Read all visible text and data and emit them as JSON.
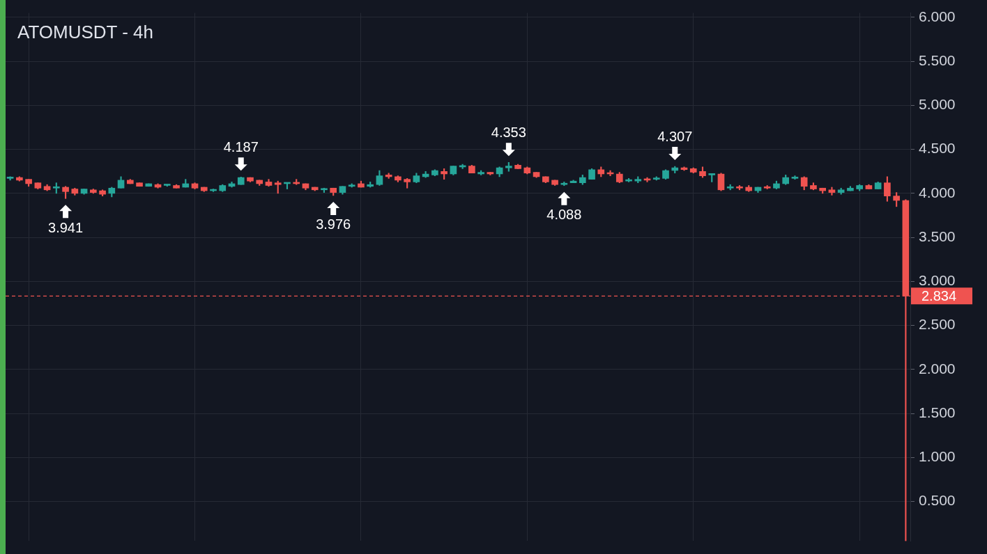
{
  "chart_data": {
    "type": "candlestick",
    "title": "ATOMUSDT - 4h",
    "categories": [
      null,
      null,
      null,
      null,
      null,
      null,
      null,
      null,
      null,
      null,
      null,
      null,
      null,
      null,
      null,
      null,
      null,
      null,
      null,
      null,
      null,
      null,
      null,
      null,
      null,
      null,
      null,
      null,
      null,
      null,
      null,
      null,
      null,
      null,
      null,
      null,
      null,
      null,
      null,
      null,
      null,
      null,
      null,
      null,
      null,
      null,
      null,
      null,
      null,
      null,
      null,
      null,
      null,
      null,
      null,
      null,
      null,
      null,
      null,
      null,
      null,
      null,
      null,
      null,
      null,
      null,
      null,
      null,
      null,
      null,
      null,
      null,
      null,
      null,
      null,
      null,
      null,
      null,
      null,
      null,
      null,
      null,
      null,
      null,
      null,
      null,
      null,
      null,
      null,
      null,
      null,
      null,
      null,
      null,
      null,
      null,
      null,
      null
    ],
    "ohlc": [
      [
        4.17,
        4.19,
        4.15,
        4.18
      ],
      [
        4.18,
        4.19,
        4.14,
        4.15
      ],
      [
        4.16,
        4.16,
        4.08,
        4.11
      ],
      [
        4.12,
        4.12,
        4.05,
        4.06
      ],
      [
        4.08,
        4.1,
        4.03,
        4.04
      ],
      [
        4.06,
        4.12,
        4.0,
        4.07
      ],
      [
        4.07,
        4.08,
        3.941,
        4.02
      ],
      [
        4.05,
        4.06,
        3.98,
        4.0
      ],
      [
        4.0,
        4.05,
        3.99,
        4.05
      ],
      [
        4.04,
        4.05,
        4.0,
        4.01
      ],
      [
        4.03,
        4.04,
        3.97,
        3.99
      ],
      [
        4.0,
        4.07,
        3.96,
        4.06
      ],
      [
        4.06,
        4.19,
        4.06,
        4.15
      ],
      [
        4.15,
        4.16,
        4.11,
        4.11
      ],
      [
        4.12,
        4.12,
        4.08,
        4.08
      ],
      [
        4.08,
        4.11,
        4.08,
        4.11
      ],
      [
        4.1,
        4.11,
        4.06,
        4.07
      ],
      [
        4.09,
        4.1,
        4.08,
        4.1
      ],
      [
        4.09,
        4.1,
        4.06,
        4.06
      ],
      [
        4.07,
        4.16,
        4.07,
        4.11
      ],
      [
        4.11,
        4.12,
        4.05,
        4.06
      ],
      [
        4.07,
        4.07,
        4.02,
        4.03
      ],
      [
        4.03,
        4.05,
        4.02,
        4.04
      ],
      [
        4.03,
        4.1,
        4.02,
        4.09
      ],
      [
        4.08,
        4.13,
        4.07,
        4.11
      ],
      [
        4.1,
        4.187,
        4.1,
        4.18
      ],
      [
        4.18,
        4.18,
        4.13,
        4.14
      ],
      [
        4.15,
        4.15,
        4.09,
        4.11
      ],
      [
        4.13,
        4.16,
        4.08,
        4.09
      ],
      [
        4.12,
        4.14,
        4.0,
        4.1
      ],
      [
        4.11,
        4.12,
        4.05,
        4.12
      ],
      [
        4.12,
        4.16,
        4.1,
        4.11
      ],
      [
        4.11,
        4.11,
        4.04,
        4.06
      ],
      [
        4.07,
        4.07,
        4.03,
        4.04
      ],
      [
        4.04,
        4.06,
        4.01,
        4.05
      ],
      [
        4.06,
        4.06,
        3.976,
        4.01
      ],
      [
        4.01,
        4.08,
        3.99,
        4.08
      ],
      [
        4.08,
        4.11,
        4.07,
        4.09
      ],
      [
        4.11,
        4.14,
        4.07,
        4.07
      ],
      [
        4.08,
        4.13,
        4.07,
        4.1
      ],
      [
        4.1,
        4.26,
        4.09,
        4.2
      ],
      [
        4.21,
        4.23,
        4.17,
        4.19
      ],
      [
        4.19,
        4.2,
        4.13,
        4.15
      ],
      [
        4.16,
        4.17,
        4.06,
        4.13
      ],
      [
        4.13,
        4.23,
        4.12,
        4.2
      ],
      [
        4.19,
        4.25,
        4.18,
        4.22
      ],
      [
        4.21,
        4.27,
        4.2,
        4.26
      ],
      [
        4.25,
        4.28,
        4.16,
        4.22
      ],
      [
        4.22,
        4.31,
        4.21,
        4.31
      ],
      [
        4.3,
        4.33,
        4.28,
        4.31
      ],
      [
        4.31,
        4.32,
        4.23,
        4.23
      ],
      [
        4.22,
        4.26,
        4.21,
        4.24
      ],
      [
        4.24,
        4.24,
        4.21,
        4.22
      ],
      [
        4.22,
        4.3,
        4.19,
        4.29
      ],
      [
        4.29,
        4.353,
        4.25,
        4.31
      ],
      [
        4.32,
        4.33,
        4.28,
        4.28
      ],
      [
        4.29,
        4.3,
        4.22,
        4.23
      ],
      [
        4.24,
        4.24,
        4.18,
        4.19
      ],
      [
        4.19,
        4.19,
        4.12,
        4.13
      ],
      [
        4.15,
        4.15,
        4.09,
        4.1
      ],
      [
        4.1,
        4.13,
        4.088,
        4.11
      ],
      [
        4.12,
        4.15,
        4.12,
        4.14
      ],
      [
        4.12,
        4.21,
        4.1,
        4.18
      ],
      [
        4.16,
        4.28,
        4.16,
        4.27
      ],
      [
        4.27,
        4.3,
        4.19,
        4.22
      ],
      [
        4.23,
        4.26,
        4.2,
        4.22
      ],
      [
        4.22,
        4.24,
        4.12,
        4.13
      ],
      [
        4.14,
        4.17,
        4.13,
        4.15
      ],
      [
        4.14,
        4.19,
        4.12,
        4.16
      ],
      [
        4.16,
        4.18,
        4.13,
        4.15
      ],
      [
        4.16,
        4.19,
        4.15,
        4.17
      ],
      [
        4.17,
        4.27,
        4.16,
        4.26
      ],
      [
        4.26,
        4.307,
        4.23,
        4.29
      ],
      [
        4.29,
        4.3,
        4.26,
        4.27
      ],
      [
        4.28,
        4.29,
        4.23,
        4.24
      ],
      [
        4.25,
        4.3,
        4.18,
        4.2
      ],
      [
        4.21,
        4.22,
        4.13,
        4.22
      ],
      [
        4.22,
        4.23,
        4.03,
        4.04
      ],
      [
        4.06,
        4.1,
        4.04,
        4.07
      ],
      [
        4.07,
        4.09,
        4.04,
        4.06
      ],
      [
        4.07,
        4.09,
        4.02,
        4.03
      ],
      [
        4.03,
        4.07,
        4.01,
        4.07
      ],
      [
        4.07,
        4.09,
        4.05,
        4.06
      ],
      [
        4.06,
        4.14,
        4.05,
        4.11
      ],
      [
        4.11,
        4.21,
        4.1,
        4.18
      ],
      [
        4.17,
        4.2,
        4.16,
        4.18
      ],
      [
        4.18,
        4.19,
        4.04,
        4.08
      ],
      [
        4.09,
        4.12,
        4.04,
        4.05
      ],
      [
        4.06,
        4.06,
        4.0,
        4.03
      ],
      [
        4.04,
        4.07,
        3.98,
        4.01
      ],
      [
        4.01,
        4.06,
        3.99,
        4.04
      ],
      [
        4.03,
        4.08,
        4.03,
        4.06
      ],
      [
        4.05,
        4.1,
        4.03,
        4.09
      ],
      [
        4.09,
        4.1,
        4.05,
        4.05
      ],
      [
        4.05,
        4.13,
        4.05,
        4.12
      ],
      [
        4.12,
        4.19,
        3.91,
        3.97
      ],
      [
        3.97,
        4.01,
        3.85,
        3.92
      ],
      [
        3.92,
        3.93,
        0.05,
        2.834
      ]
    ],
    "colors": [
      "#26a69a",
      "#ef5350",
      "#ef5350",
      "#ef5350",
      "#ef5350",
      "#26a69a",
      "#ef5350",
      "#ef5350",
      "#26a69a",
      "#ef5350",
      "#ef5350",
      "#26a69a",
      "#26a69a",
      "#ef5350",
      "#ef5350",
      "#26a69a",
      "#ef5350",
      "#26a69a",
      "#ef5350",
      "#26a69a",
      "#ef5350",
      "#ef5350",
      "#26a69a",
      "#26a69a",
      "#26a69a",
      "#26a69a",
      "#ef5350",
      "#ef5350",
      "#ef5350",
      "#ef5350",
      "#26a69a",
      "#ef5350",
      "#ef5350",
      "#ef5350",
      "#26a69a",
      "#ef5350",
      "#26a69a",
      "#26a69a",
      "#ef5350",
      "#26a69a",
      "#26a69a",
      "#ef5350",
      "#ef5350",
      "#ef5350",
      "#26a69a",
      "#26a69a",
      "#26a69a",
      "#ef5350",
      "#26a69a",
      "#26a69a",
      "#ef5350",
      "#26a69a",
      "#ef5350",
      "#26a69a",
      "#26a69a",
      "#ef5350",
      "#ef5350",
      "#ef5350",
      "#ef5350",
      "#ef5350",
      "#26a69a",
      "#26a69a",
      "#26a69a",
      "#26a69a",
      "#ef5350",
      "#ef5350",
      "#ef5350",
      "#26a69a",
      "#26a69a",
      "#ef5350",
      "#26a69a",
      "#26a69a",
      "#26a69a",
      "#ef5350",
      "#ef5350",
      "#ef5350",
      "#26a69a",
      "#ef5350",
      "#26a69a",
      "#ef5350",
      "#ef5350",
      "#26a69a",
      "#ef5350",
      "#26a69a",
      "#26a69a",
      "#26a69a",
      "#ef5350",
      "#ef5350",
      "#ef5350",
      "#ef5350",
      "#26a69a",
      "#26a69a",
      "#26a69a",
      "#ef5350",
      "#26a69a",
      "#ef5350",
      "#ef5350",
      "#ef5350"
    ],
    "ylim": [
      0.05,
      6.05
    ],
    "yticks": [
      {
        "value": 0.5,
        "label": "0.500"
      },
      {
        "value": 1,
        "label": "1.000"
      },
      {
        "value": 1.5,
        "label": "1.500"
      },
      {
        "value": 2,
        "label": "2.000"
      },
      {
        "value": 2.5,
        "label": "2.500"
      },
      {
        "value": 3,
        "label": "3.000"
      },
      {
        "value": 3.5,
        "label": "3.500"
      },
      {
        "value": 4,
        "label": "4.000"
      },
      {
        "value": 4.5,
        "label": "4.500"
      },
      {
        "value": 5,
        "label": "5.000"
      },
      {
        "value": 5.5,
        "label": "5.500"
      },
      {
        "value": 6,
        "label": "6.000"
      }
    ],
    "grid": true,
    "ref_lines": [
      {
        "axis": "y",
        "value": 2.834,
        "label": "2.834",
        "color": "#ef5350",
        "line_style": "dashed"
      }
    ],
    "annotations": [
      {
        "text": "3.941",
        "y": 3.941
      },
      {
        "text": "4.187",
        "y": 4.187
      },
      {
        "text": "3.976",
        "y": 3.976
      },
      {
        "text": "4.353",
        "y": 4.353
      },
      {
        "text": "4.088",
        "y": 4.088
      },
      {
        "text": "4.307",
        "y": 4.307
      }
    ]
  }
}
